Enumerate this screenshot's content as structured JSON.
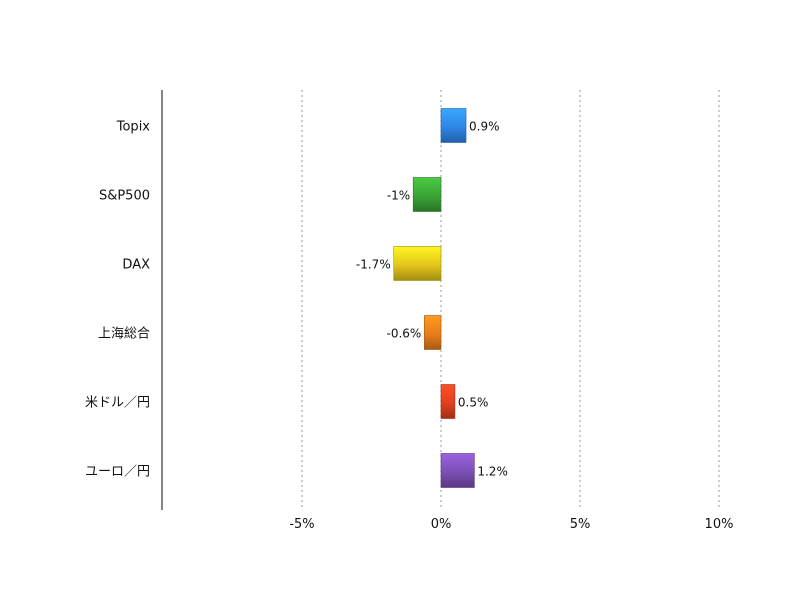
{
  "chart_data": {
    "type": "bar",
    "orientation": "horizontal",
    "categories": [
      "Topix",
      "S&P500",
      "DAX",
      "上海総合",
      "米ドル／円",
      "ユーロ／円"
    ],
    "values": [
      0.9,
      -1.0,
      -1.7,
      -0.6,
      0.5,
      1.2
    ],
    "data_labels": [
      "0.9%",
      "-1%",
      "-1.7%",
      "-0.6%",
      "0.5%",
      "1.2%"
    ],
    "bar_colors": [
      "#2f86e6",
      "#3aa335",
      "#e3c51a",
      "#e87d1a",
      "#e2401f",
      "#7b4fb4"
    ],
    "x_ticks": [
      {
        "value": -5,
        "label": "-5%"
      },
      {
        "value": 0,
        "label": "0%"
      },
      {
        "value": 5,
        "label": "5%"
      },
      {
        "value": 10,
        "label": "10%"
      }
    ],
    "xlim": [
      -10,
      10
    ],
    "grid": "vertical dotted",
    "legend": "none",
    "title": "",
    "xlabel": "",
    "ylabel": ""
  }
}
